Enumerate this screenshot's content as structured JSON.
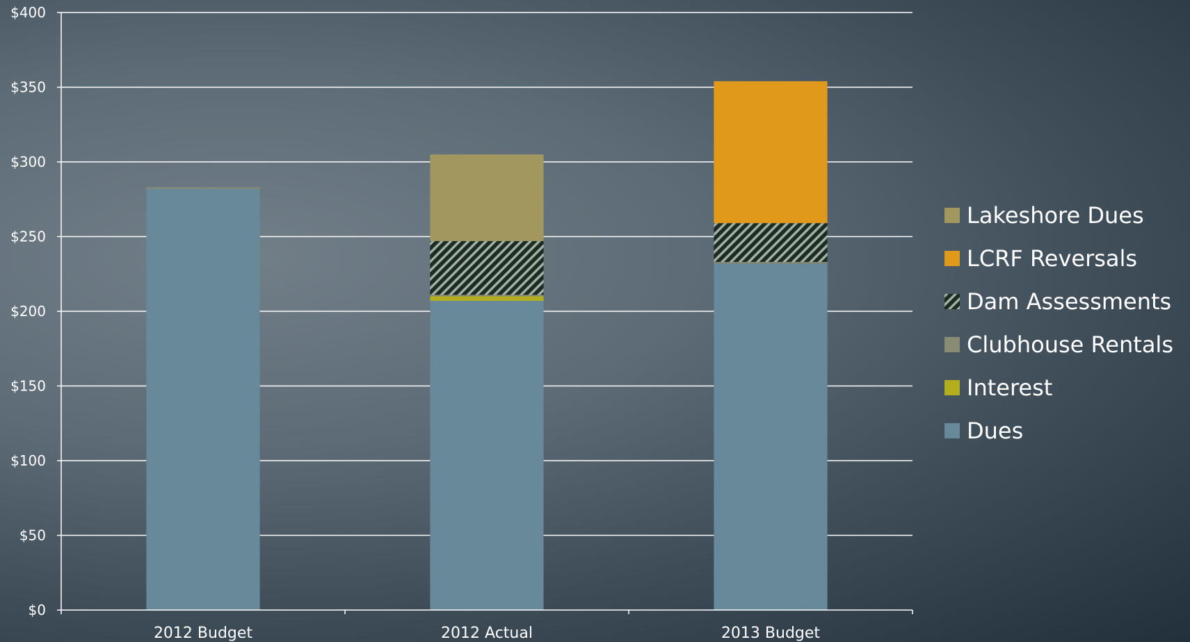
{
  "chart_data": {
    "type": "bar",
    "stacked": true,
    "categories": [
      "2012 Budget",
      "2012 Actual",
      "2013 Budget"
    ],
    "ylim": [
      0,
      400
    ],
    "yticks": [
      "$0",
      "$50",
      "$100",
      "$150",
      "$200",
      "$250",
      "$300",
      "$350",
      "$400"
    ],
    "ytick_values": [
      0,
      50,
      100,
      150,
      200,
      250,
      300,
      350,
      400
    ],
    "grid": true,
    "legend_position": "right",
    "series": [
      {
        "name": "Dues",
        "values": [
          282,
          207,
          232
        ],
        "color": "#67899a",
        "pattern": "solid"
      },
      {
        "name": "Interest",
        "values": [
          0,
          3,
          0
        ],
        "color": "#b3ae1e",
        "pattern": "solid"
      },
      {
        "name": "Clubhouse Rentals",
        "values": [
          1,
          1,
          1
        ],
        "color": "#8a8b73",
        "pattern": "solid"
      },
      {
        "name": "Dam Assessments",
        "values": [
          0,
          36,
          26
        ],
        "color": "#1f2a23",
        "pattern": "hatch"
      },
      {
        "name": "LCRF Reversals",
        "values": [
          0,
          0,
          95
        ],
        "color": "#e0991b",
        "pattern": "solid"
      },
      {
        "name": "Lakeshore Dues",
        "values": [
          0,
          58,
          0
        ],
        "color": "#a1975f",
        "pattern": "solid"
      }
    ],
    "legend_order": [
      "Lakeshore Dues",
      "LCRF Reversals",
      "Dam Assessments",
      "Clubhouse Rentals",
      "Interest",
      "Dues"
    ]
  }
}
